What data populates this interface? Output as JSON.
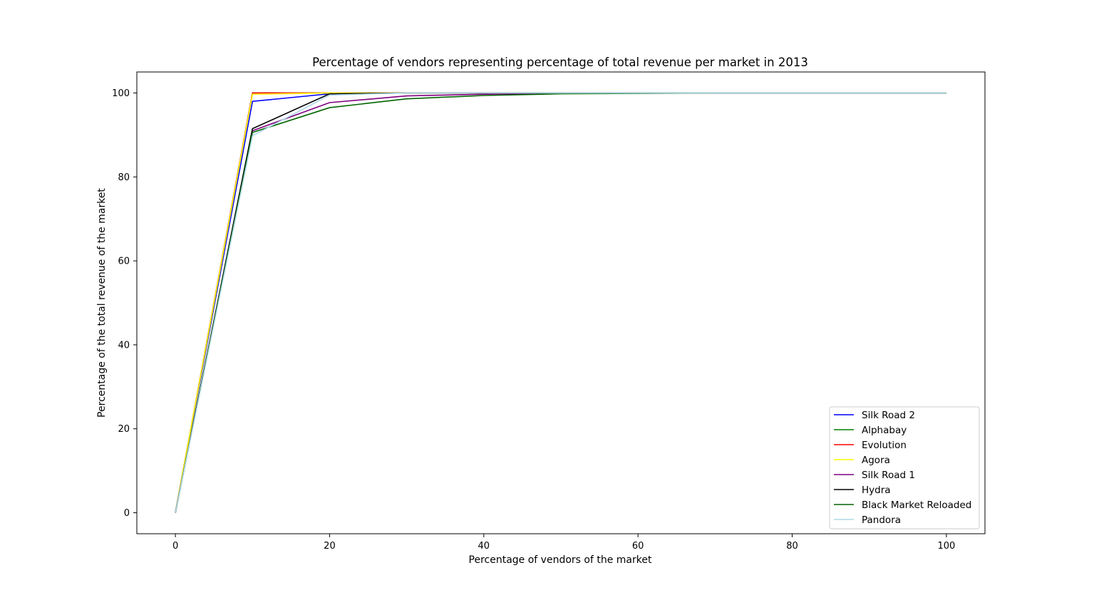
{
  "chart_data": {
    "type": "line",
    "title": "Percentage of vendors representing percentage of total revenue per market in 2013",
    "xlabel": "Percentage of vendors of the market",
    "ylabel": "Percentage of the total revenue of the market",
    "xlim": [
      -5,
      105
    ],
    "ylim": [
      -5,
      105
    ],
    "xticks": [
      0,
      20,
      40,
      60,
      80,
      100
    ],
    "yticks": [
      0,
      20,
      40,
      60,
      80,
      100
    ],
    "grid": false,
    "legend_position": "lower-right",
    "x": [
      0,
      10,
      20,
      30,
      40,
      50,
      60,
      70,
      80,
      90,
      100
    ],
    "series": [
      {
        "name": "Silk Road 2",
        "color": "#0000ff",
        "values": [
          0,
          98.0,
          99.8,
          100,
          100,
          100,
          100,
          100,
          100,
          100,
          100
        ]
      },
      {
        "name": "Alphabay",
        "color": "#008000",
        "values": [
          0,
          100,
          100,
          100,
          100,
          100,
          100,
          100,
          100,
          100,
          100
        ]
      },
      {
        "name": "Evolution",
        "color": "#ff0000",
        "values": [
          0,
          100,
          100,
          100,
          100,
          100,
          100,
          100,
          100,
          100,
          100
        ]
      },
      {
        "name": "Agora",
        "color": "#ffff00",
        "values": [
          0,
          99.7,
          100,
          100,
          100,
          100,
          100,
          100,
          100,
          100,
          100
        ]
      },
      {
        "name": "Silk Road 1",
        "color": "#800080",
        "values": [
          0,
          91.0,
          97.7,
          99.3,
          99.7,
          99.9,
          100,
          100,
          100,
          100,
          100
        ]
      },
      {
        "name": "Hydra",
        "color": "#000000",
        "values": [
          0,
          91.5,
          99.8,
          100,
          100,
          100,
          100,
          100,
          100,
          100,
          100
        ]
      },
      {
        "name": "Black Market Reloaded",
        "color": "#006400",
        "values": [
          0,
          90.6,
          96.5,
          98.6,
          99.4,
          99.8,
          99.9,
          100,
          100,
          100,
          100
        ]
      },
      {
        "name": "Pandora",
        "color": "#add8e6",
        "values": [
          0,
          89.8,
          99.5,
          100,
          100,
          100,
          100,
          100,
          100,
          100,
          100
        ]
      }
    ]
  }
}
